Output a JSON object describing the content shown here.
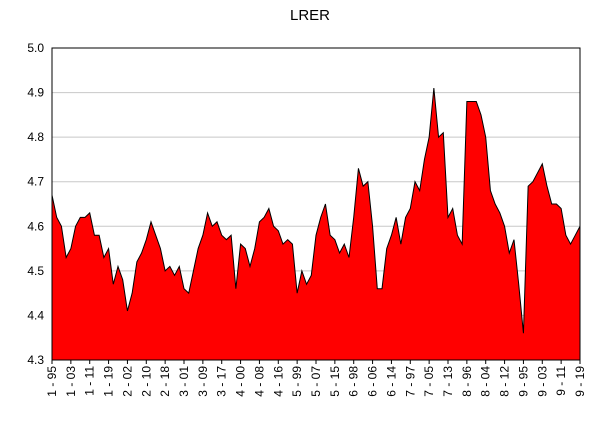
{
  "chart_data": {
    "type": "area",
    "title": "LRER",
    "categories": [
      "1 - 95",
      null,
      null,
      null,
      "1 - 03",
      null,
      null,
      null,
      "1 - 11",
      null,
      null,
      null,
      "1 - 19",
      null,
      null,
      null,
      "2 - 02",
      null,
      null,
      null,
      "2 - 10",
      null,
      null,
      null,
      "2 - 18",
      null,
      null,
      null,
      "3 - 01",
      null,
      null,
      null,
      "3 - 09",
      null,
      null,
      null,
      "3 - 17",
      null,
      null,
      null,
      "4 - 00",
      null,
      null,
      null,
      "4 - 08",
      null,
      null,
      null,
      "4 - 16",
      null,
      null,
      null,
      "5 - 99",
      null,
      null,
      null,
      "5 - 07",
      null,
      null,
      null,
      "5 - 15",
      null,
      null,
      null,
      "6 - 98",
      null,
      null,
      null,
      "6 - 06",
      null,
      null,
      null,
      "6 - 14",
      null,
      null,
      null,
      "7 - 97",
      null,
      null,
      null,
      "7 - 05",
      null,
      null,
      null,
      "7 - 13",
      null,
      null,
      null,
      "8 - 96",
      null,
      null,
      null,
      "8 - 04",
      null,
      null,
      null,
      "8 - 12",
      null,
      null,
      null,
      "9 - 95",
      null,
      null,
      null,
      "9 - 03",
      null,
      null,
      null,
      "9 - 11",
      null,
      null,
      null,
      "9 - 19"
    ],
    "values": [
      4.67,
      4.62,
      4.6,
      4.53,
      4.55,
      4.6,
      4.62,
      4.62,
      4.63,
      4.58,
      4.58,
      4.53,
      4.55,
      4.47,
      4.51,
      4.48,
      4.41,
      4.45,
      4.52,
      4.54,
      4.57,
      4.61,
      4.58,
      4.55,
      4.5,
      4.51,
      4.49,
      4.51,
      4.46,
      4.45,
      4.5,
      4.55,
      4.58,
      4.63,
      4.6,
      4.61,
      4.58,
      4.57,
      4.58,
      4.46,
      4.56,
      4.55,
      4.51,
      4.55,
      4.61,
      4.62,
      4.64,
      4.6,
      4.59,
      4.56,
      4.57,
      4.56,
      4.45,
      4.5,
      4.47,
      4.49,
      4.58,
      4.62,
      4.65,
      4.58,
      4.57,
      4.54,
      4.56,
      4.53,
      4.62,
      4.73,
      4.69,
      4.7,
      4.6,
      4.46,
      4.46,
      4.55,
      4.58,
      4.62,
      4.56,
      4.62,
      4.64,
      4.7,
      4.68,
      4.75,
      4.8,
      4.91,
      4.8,
      4.81,
      4.62,
      4.64,
      4.58,
      4.56,
      4.88,
      4.88,
      4.88,
      4.85,
      4.8,
      4.68,
      4.65,
      4.63,
      4.6,
      4.54,
      4.57,
      4.47,
      4.36,
      4.69,
      4.7,
      4.72,
      4.74,
      4.69,
      4.65,
      4.65,
      4.64,
      4.58,
      4.56,
      4.58,
      4.6
    ],
    "color": "#ff0000",
    "ylim": [
      4.3,
      5.0
    ],
    "yticks": [
      4.3,
      4.4,
      4.5,
      4.6,
      4.7,
      4.8,
      4.9,
      {
        "value": 5,
        "label": "5.0"
      }
    ],
    "grid": true
  }
}
